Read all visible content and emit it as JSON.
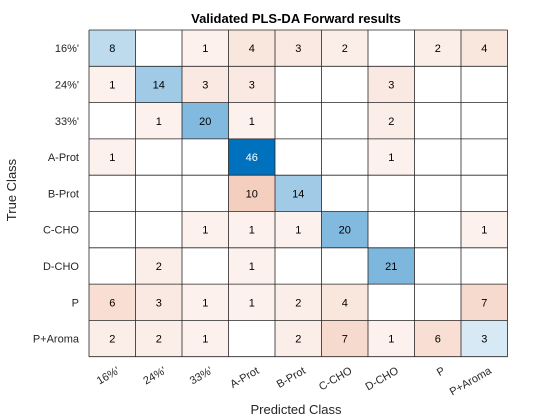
{
  "chart_data": {
    "type": "heatmap",
    "title": "Validated PLS-DA  Forward results",
    "xlabel": "Predicted Class",
    "ylabel": "True Class",
    "classes": [
      "16%'",
      "24%'",
      "33%'",
      "A-Prot",
      "B-Prot",
      "C-CHO",
      "D-CHO",
      "P",
      "P+Aroma"
    ],
    "matrix": [
      [
        8,
        null,
        1,
        4,
        3,
        2,
        null,
        2,
        4
      ],
      [
        1,
        14,
        3,
        3,
        null,
        null,
        3,
        null,
        null
      ],
      [
        null,
        1,
        20,
        1,
        null,
        null,
        2,
        null,
        null
      ],
      [
        1,
        null,
        null,
        46,
        null,
        null,
        1,
        null,
        null
      ],
      [
        null,
        null,
        null,
        10,
        14,
        null,
        null,
        null,
        null
      ],
      [
        null,
        null,
        1,
        1,
        1,
        20,
        null,
        null,
        1
      ],
      [
        null,
        2,
        null,
        1,
        null,
        null,
        21,
        null,
        null
      ],
      [
        6,
        3,
        1,
        1,
        2,
        4,
        null,
        null,
        7
      ],
      [
        2,
        2,
        1,
        null,
        2,
        7,
        1,
        6,
        3
      ]
    ],
    "colors": {
      "diagonal": "#0072bd",
      "off_diagonal": "#d95319",
      "grid": "#262626"
    }
  }
}
